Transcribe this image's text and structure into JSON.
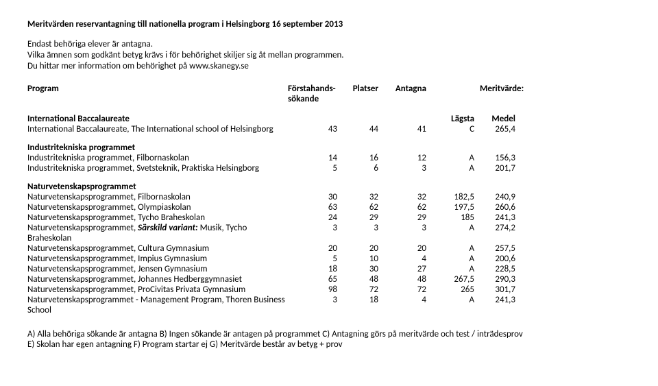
{
  "title": "Meritvärden reservantagning till nationella program i Helsingborg 16 september  2013",
  "intro": {
    "l1": "Endast behöriga elever är antagna.",
    "l2": "Vilka ämnen som godkänt betyg krävs i för behörighet skiljer sig åt mellan programmen.",
    "l3": "Du hittar mer information om behörighet på www.skanegy.se"
  },
  "headers": {
    "program": "Program",
    "h1a": "Förstahands-",
    "h1b": "sökande",
    "h2": "Platser",
    "h3": "Antagna",
    "h4": "Meritvärde:"
  },
  "sections": [
    {
      "name": "International Baccalaureate",
      "lagsta": "Lägsta",
      "medel": "Medel",
      "rows": [
        {
          "label": "International Baccalaureate, The International school of Helsingborg",
          "c1": "43",
          "c2": "44",
          "c3": "41",
          "c4": "C",
          "c5": "265,4"
        }
      ]
    },
    {
      "name": "Industritekniska programmet",
      "rows": [
        {
          "label": "Industritekniska programmet, Filbornaskolan",
          "c1": "14",
          "c2": "16",
          "c3": "12",
          "c4": "A",
          "c5": "156,3"
        },
        {
          "label": "Industritekniska programmet, Svetsteknik, Praktiska Helsingborg",
          "c1": "5",
          "c2": "6",
          "c3": "3",
          "c4": "A",
          "c5": "201,7"
        }
      ]
    },
    {
      "name": "Naturvetenskapsprogrammet",
      "rows": [
        {
          "label": "Naturvetenskapsprogrammet, Filbornaskolan",
          "c1": "30",
          "c2": "32",
          "c3": "32",
          "c4": "182,5",
          "c5": "240,9"
        },
        {
          "label": "Naturvetenskapsprogrammet, Olympiaskolan",
          "c1": "63",
          "c2": "62",
          "c3": "62",
          "c4": "197,5",
          "c5": "260,6"
        },
        {
          "label": "Naturvetenskapsprogrammet, Tycho Braheskolan",
          "c1": "24",
          "c2": "29",
          "c3": "29",
          "c4": "185",
          "c5": "241,3"
        },
        {
          "label_pre": "Naturvetenskapsprogrammet, ",
          "label_italic": "Särskild variant:",
          "label_post": " Musik, Tycho Braheskolan",
          "c1": "3",
          "c2": "3",
          "c3": "3",
          "c4": "A",
          "c5": "274,2"
        },
        {
          "label": "Naturvetenskapsprogrammet, Cultura Gymnasium",
          "c1": "20",
          "c2": "20",
          "c3": "20",
          "c4": "A",
          "c5": "257,5"
        },
        {
          "label": "Naturvetenskapsprogrammet, Impius Gymnasium",
          "c1": "5",
          "c2": "10",
          "c3": "4",
          "c4": "A",
          "c5": "200,6"
        },
        {
          "label": "Naturvetenskapsprogrammet, Jensen Gymnasium",
          "c1": "18",
          "c2": "30",
          "c3": "27",
          "c4": "A",
          "c5": "228,5"
        },
        {
          "label": "Naturvetenskapsprogrammet, Johannes Hedberggymnasiet",
          "c1": "65",
          "c2": "48",
          "c3": "48",
          "c4": "267,5",
          "c5": "290,3"
        },
        {
          "label": "Naturvetenskapsprogrammet, ProCivitas Privata Gymnasium",
          "c1": "98",
          "c2": "72",
          "c3": "72",
          "c4": "265",
          "c5": "301,7"
        },
        {
          "label": "Naturvetenskapsprogrammet - Management Program, Thoren Business School",
          "c1": "3",
          "c2": "18",
          "c3": "4",
          "c4": "A",
          "c5": "241,3"
        }
      ]
    }
  ],
  "footer": {
    "l1": "A) Alla behöriga sökande är antagna B) Ingen sökande är antagen på programmet C) Antagning görs på meritvärde och test / inträdesprov",
    "l2": "E) Skolan har egen antagning F) Program startar ej G) Meritvärde består av betyg + prov"
  }
}
